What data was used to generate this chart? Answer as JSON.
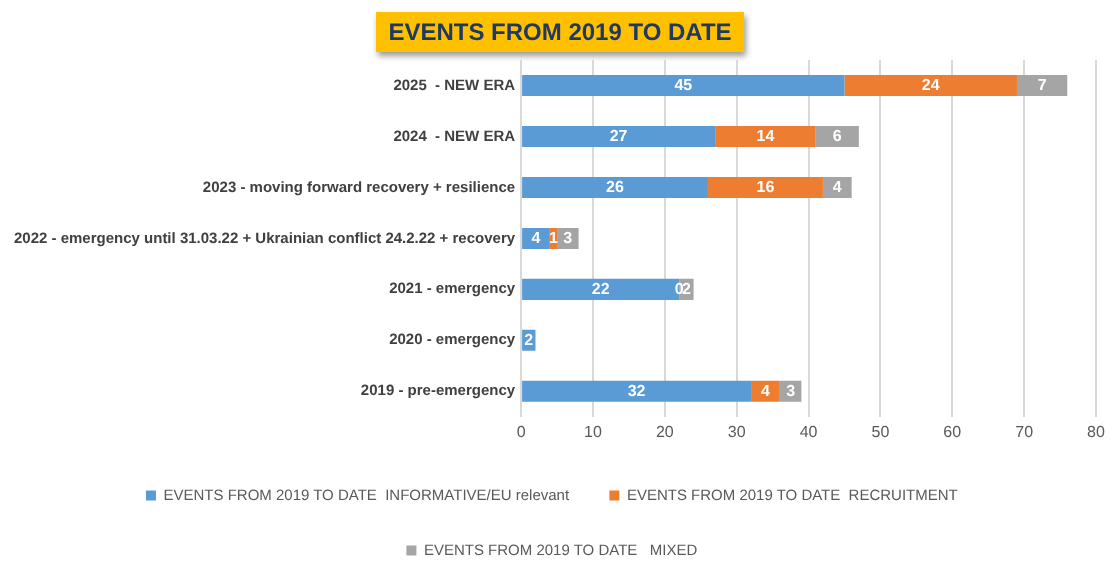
{
  "chart_data": {
    "type": "bar",
    "orientation": "horizontal",
    "stacked": true,
    "title": "EVENTS FROM 2019 TO DATE",
    "categories": [
      "2025  - NEW ERA",
      "2024  - NEW ERA",
      "2023 - moving forward recovery + resilience",
      "2022 - emergency until 31.03.22 + Ukrainian conflict 24.2.22 + recovery",
      "2021 - emergency",
      "2020 - emergency",
      "2019 - pre-emergency"
    ],
    "series": [
      {
        "name": "EVENTS FROM 2019 TO DATE  INFORMATIVE/EU relevant",
        "color": "#5b9bd5",
        "values": [
          45,
          27,
          26,
          4,
          22,
          2,
          32
        ],
        "value_labels": [
          "45",
          "27",
          "26",
          "4",
          "22",
          "2",
          "32"
        ]
      },
      {
        "name": "EVENTS FROM 2019 TO DATE  RECRUITMENT",
        "color": "#ed7d31",
        "values": [
          24,
          14,
          16,
          1,
          0,
          0,
          4
        ],
        "value_labels": [
          "24",
          "14",
          "16",
          "1",
          "0",
          null,
          "4"
        ]
      },
      {
        "name": "EVENTS FROM 2019 TO DATE   MIXED",
        "color": "#a5a5a5",
        "values": [
          7,
          6,
          4,
          3,
          2,
          0,
          3
        ],
        "value_labels": [
          "7",
          "6",
          "4",
          "3",
          "2",
          null,
          "3"
        ]
      }
    ],
    "xlim": [
      0,
      80
    ],
    "xticks": [
      0,
      10,
      20,
      30,
      40,
      50,
      60,
      70,
      80
    ],
    "grid": "x",
    "legend": "bottom"
  }
}
